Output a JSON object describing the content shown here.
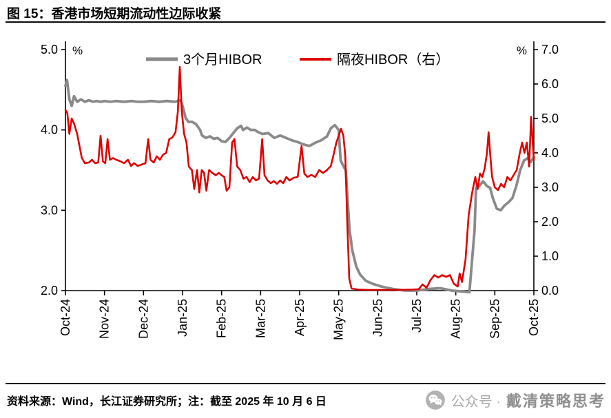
{
  "header": {
    "figure_label": "图 15：",
    "title": "香港市场短期流动性边际收紧"
  },
  "footer": {
    "source": "资料来源：Wind，长江证券研究所；注：截至 2025 年 10 月 6 日",
    "watermark_prefix": "公众号 ·",
    "watermark_name": "戴清策略思考"
  },
  "colors": {
    "axis": "#000000",
    "rule": "#0a0a0a",
    "series_3m_hibor": "#8a8a8a",
    "series_overnight_hibor": "#df0000",
    "watermark_gray": "#a9a9a9"
  },
  "chart_data": {
    "type": "line",
    "title": "香港市场短期流动性边际收紧",
    "grid": false,
    "legend_position": "top",
    "x_range": [
      0,
      12
    ],
    "categories": [
      "Oct-24",
      "Nov-24",
      "Dec-24",
      "Jan-25",
      "Feb-25",
      "Mar-25",
      "Apr-25",
      "May-25",
      "Jun-25",
      "Jul-25",
      "Aug-25",
      "Sep-25",
      "Oct-25"
    ],
    "left_axis": {
      "min": 2.0,
      "max": 5.0,
      "ticks": [
        "5.0",
        "4.0",
        "3.0",
        "2.0"
      ],
      "unit": "%"
    },
    "right_axis": {
      "min": 0.0,
      "max": 7.0,
      "ticks": [
        "7.0",
        "6.0",
        "5.0",
        "4.0",
        "3.0",
        "2.0",
        "1.0",
        "0.0"
      ],
      "unit": "%"
    },
    "series": [
      {
        "name": "3个月HIBOR",
        "axis": "left",
        "color": "#8a8a8a",
        "points": [
          [
            0,
            4.55
          ],
          [
            0.04,
            4.62
          ],
          [
            0.1,
            4.38
          ],
          [
            0.16,
            4.3
          ],
          [
            0.22,
            4.42
          ],
          [
            0.3,
            4.35
          ],
          [
            0.4,
            4.38
          ],
          [
            0.5,
            4.35
          ],
          [
            0.6,
            4.37
          ],
          [
            0.7,
            4.35
          ],
          [
            0.8,
            4.36
          ],
          [
            0.9,
            4.35
          ],
          [
            1.0,
            4.36
          ],
          [
            1.15,
            4.35
          ],
          [
            1.3,
            4.36
          ],
          [
            1.5,
            4.35
          ],
          [
            1.7,
            4.36
          ],
          [
            1.85,
            4.35
          ],
          [
            2.0,
            4.35
          ],
          [
            2.2,
            4.36
          ],
          [
            2.4,
            4.35
          ],
          [
            2.6,
            4.36
          ],
          [
            2.8,
            4.35
          ],
          [
            2.95,
            4.37
          ],
          [
            3.0,
            4.3
          ],
          [
            3.08,
            4.15
          ],
          [
            3.15,
            4.1
          ],
          [
            3.25,
            4.1
          ],
          [
            3.35,
            4.07
          ],
          [
            3.45,
            4.0
          ],
          [
            3.5,
            3.93
          ],
          [
            3.6,
            3.9
          ],
          [
            3.7,
            3.92
          ],
          [
            3.8,
            3.89
          ],
          [
            3.9,
            3.9
          ],
          [
            4.0,
            3.86
          ],
          [
            4.1,
            3.85
          ],
          [
            4.2,
            3.9
          ],
          [
            4.3,
            3.96
          ],
          [
            4.4,
            4.02
          ],
          [
            4.5,
            4.05
          ],
          [
            4.55,
            4.0
          ],
          [
            4.65,
            4.03
          ],
          [
            4.75,
            4.0
          ],
          [
            4.85,
            4.0
          ],
          [
            4.95,
            3.97
          ],
          [
            5.05,
            3.95
          ],
          [
            5.2,
            3.96
          ],
          [
            5.35,
            3.9
          ],
          [
            5.5,
            3.93
          ],
          [
            5.65,
            3.9
          ],
          [
            5.8,
            3.87
          ],
          [
            5.95,
            3.85
          ],
          [
            6.1,
            3.82
          ],
          [
            6.25,
            3.8
          ],
          [
            6.4,
            3.84
          ],
          [
            6.55,
            3.87
          ],
          [
            6.7,
            3.92
          ],
          [
            6.8,
            4.02
          ],
          [
            6.9,
            4.06
          ],
          [
            7.0,
            4.0
          ],
          [
            7.05,
            3.62
          ],
          [
            7.12,
            3.55
          ],
          [
            7.18,
            3.5
          ],
          [
            7.22,
            3.2
          ],
          [
            7.28,
            2.75
          ],
          [
            7.35,
            2.5
          ],
          [
            7.45,
            2.3
          ],
          [
            7.55,
            2.2
          ],
          [
            7.7,
            2.12
          ],
          [
            7.9,
            2.08
          ],
          [
            8.1,
            2.05
          ],
          [
            8.4,
            2.02
          ],
          [
            8.7,
            2.0
          ],
          [
            9.0,
            2.0
          ],
          [
            9.3,
            2.02
          ],
          [
            9.6,
            2.03
          ],
          [
            9.9,
            2.0
          ],
          [
            10.15,
            1.99
          ],
          [
            10.35,
            1.98
          ],
          [
            10.42,
            2.4
          ],
          [
            10.48,
            2.75
          ],
          [
            10.52,
            3.28
          ],
          [
            10.6,
            3.3
          ],
          [
            10.7,
            3.36
          ],
          [
            10.8,
            3.3
          ],
          [
            10.88,
            3.28
          ],
          [
            10.95,
            3.15
          ],
          [
            11.05,
            3.02
          ],
          [
            11.15,
            3.0
          ],
          [
            11.25,
            3.06
          ],
          [
            11.35,
            3.1
          ],
          [
            11.45,
            3.15
          ],
          [
            11.55,
            3.3
          ],
          [
            11.65,
            3.5
          ],
          [
            11.75,
            3.62
          ],
          [
            11.85,
            3.65
          ],
          [
            11.92,
            3.6
          ],
          [
            12.0,
            3.66
          ]
        ]
      },
      {
        "name": "隔夜HIBOR（右）",
        "axis": "right",
        "color": "#df0000",
        "points": [
          [
            0,
            5.25
          ],
          [
            0.05,
            5.15
          ],
          [
            0.1,
            4.55
          ],
          [
            0.16,
            5.0
          ],
          [
            0.22,
            4.85
          ],
          [
            0.3,
            4.55
          ],
          [
            0.36,
            4.2
          ],
          [
            0.42,
            3.85
          ],
          [
            0.5,
            3.7
          ],
          [
            0.6,
            3.72
          ],
          [
            0.68,
            3.8
          ],
          [
            0.76,
            3.7
          ],
          [
            0.84,
            3.72
          ],
          [
            0.9,
            4.5
          ],
          [
            0.96,
            3.75
          ],
          [
            1.02,
            3.7
          ],
          [
            1.08,
            4.4
          ],
          [
            1.14,
            3.8
          ],
          [
            1.22,
            3.85
          ],
          [
            1.3,
            3.8
          ],
          [
            1.4,
            3.76
          ],
          [
            1.5,
            3.7
          ],
          [
            1.6,
            3.8
          ],
          [
            1.68,
            3.62
          ],
          [
            1.76,
            3.7
          ],
          [
            1.85,
            3.62
          ],
          [
            1.95,
            3.66
          ],
          [
            2.05,
            3.7
          ],
          [
            2.12,
            4.4
          ],
          [
            2.18,
            3.8
          ],
          [
            2.26,
            3.72
          ],
          [
            2.34,
            3.9
          ],
          [
            2.42,
            3.8
          ],
          [
            2.5,
            3.95
          ],
          [
            2.58,
            4.0
          ],
          [
            2.66,
            4.4
          ],
          [
            2.74,
            4.45
          ],
          [
            2.82,
            4.6
          ],
          [
            2.88,
            5.2
          ],
          [
            2.93,
            6.5
          ],
          [
            2.98,
            5.2
          ],
          [
            3.04,
            4.55
          ],
          [
            3.1,
            4.3
          ],
          [
            3.16,
            3.6
          ],
          [
            3.24,
            3.5
          ],
          [
            3.3,
            2.95
          ],
          [
            3.37,
            3.5
          ],
          [
            3.43,
            2.85
          ],
          [
            3.49,
            3.5
          ],
          [
            3.55,
            3.42
          ],
          [
            3.61,
            2.9
          ],
          [
            3.68,
            3.5
          ],
          [
            3.76,
            3.42
          ],
          [
            3.85,
            3.35
          ],
          [
            3.93,
            3.42
          ],
          [
            4.0,
            3.35
          ],
          [
            4.07,
            3.3
          ],
          [
            4.13,
            2.9
          ],
          [
            4.2,
            3.0
          ],
          [
            4.27,
            4.3
          ],
          [
            4.33,
            4.4
          ],
          [
            4.4,
            3.6
          ],
          [
            4.48,
            3.5
          ],
          [
            4.56,
            3.25
          ],
          [
            4.64,
            3.3
          ],
          [
            4.72,
            3.15
          ],
          [
            4.8,
            3.3
          ],
          [
            4.88,
            3.2
          ],
          [
            4.96,
            3.25
          ],
          [
            5.04,
            4.4
          ],
          [
            5.1,
            3.35
          ],
          [
            5.18,
            3.2
          ],
          [
            5.26,
            3.12
          ],
          [
            5.34,
            3.18
          ],
          [
            5.42,
            3.1
          ],
          [
            5.5,
            3.2
          ],
          [
            5.58,
            3.12
          ],
          [
            5.66,
            3.3
          ],
          [
            5.74,
            3.2
          ],
          [
            5.85,
            3.28
          ],
          [
            5.95,
            3.3
          ],
          [
            6.05,
            4.2
          ],
          [
            6.12,
            3.4
          ],
          [
            6.2,
            3.3
          ],
          [
            6.3,
            3.36
          ],
          [
            6.4,
            3.3
          ],
          [
            6.5,
            3.5
          ],
          [
            6.6,
            3.42
          ],
          [
            6.7,
            3.5
          ],
          [
            6.8,
            3.62
          ],
          [
            6.88,
            4.0
          ],
          [
            6.94,
            4.3
          ],
          [
            7.0,
            4.5
          ],
          [
            7.06,
            4.7
          ],
          [
            7.12,
            4.5
          ],
          [
            7.17,
            3.9
          ],
          [
            7.22,
            2.0
          ],
          [
            7.27,
            0.35
          ],
          [
            7.33,
            0.06
          ],
          [
            7.5,
            0.03
          ],
          [
            7.8,
            0.02
          ],
          [
            8.1,
            0.02
          ],
          [
            8.5,
            0.02
          ],
          [
            8.9,
            0.03
          ],
          [
            9.05,
            0.04
          ],
          [
            9.15,
            0.18
          ],
          [
            9.25,
            0.08
          ],
          [
            9.35,
            0.3
          ],
          [
            9.45,
            0.45
          ],
          [
            9.55,
            0.38
          ],
          [
            9.65,
            0.45
          ],
          [
            9.75,
            0.4
          ],
          [
            9.85,
            0.45
          ],
          [
            9.95,
            0.2
          ],
          [
            10.05,
            0.12
          ],
          [
            10.1,
            0.5
          ],
          [
            10.16,
            0.25
          ],
          [
            10.25,
            0.9
          ],
          [
            10.33,
            2.2
          ],
          [
            10.42,
            2.85
          ],
          [
            10.5,
            3.3
          ],
          [
            10.56,
            2.95
          ],
          [
            10.62,
            3.4
          ],
          [
            10.68,
            3.3
          ],
          [
            10.74,
            3.55
          ],
          [
            10.8,
            4.0
          ],
          [
            10.84,
            4.6
          ],
          [
            10.88,
            4.0
          ],
          [
            10.93,
            3.3
          ],
          [
            11.0,
            3.0
          ],
          [
            11.08,
            2.92
          ],
          [
            11.16,
            3.1
          ],
          [
            11.24,
            3.0
          ],
          [
            11.32,
            3.3
          ],
          [
            11.4,
            3.2
          ],
          [
            11.48,
            3.35
          ],
          [
            11.56,
            3.5
          ],
          [
            11.64,
            4.0
          ],
          [
            11.7,
            4.3
          ],
          [
            11.76,
            4.0
          ],
          [
            11.82,
            4.3
          ],
          [
            11.88,
            3.6
          ],
          [
            11.93,
            5.05
          ],
          [
            12.0,
            3.78
          ]
        ]
      }
    ]
  }
}
